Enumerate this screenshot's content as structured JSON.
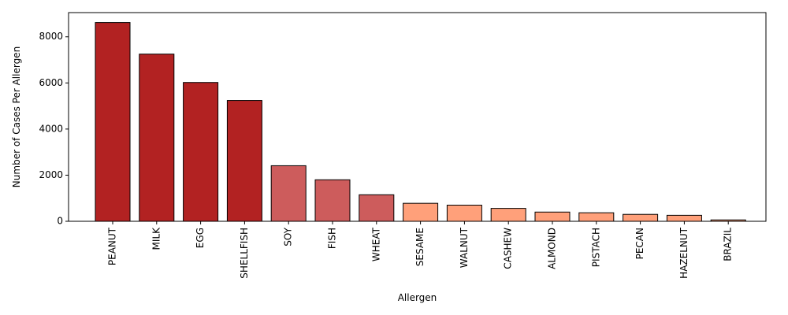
{
  "chart_data": {
    "type": "bar",
    "xlabel": "Allergen",
    "ylabel": "Number of Cases Per Allergen",
    "categories": [
      "PEANUT",
      "MILK",
      "EGG",
      "SHELLFISH",
      "SOY",
      "FISH",
      "WHEAT",
      "SESAME",
      "WALNUT",
      "CASHEW",
      "ALMOND",
      "PISTACH",
      "PECAN",
      "HAZELNUT",
      "BRAZIL"
    ],
    "values": [
      8620,
      7250,
      6020,
      5240,
      2410,
      1800,
      1150,
      780,
      700,
      560,
      400,
      370,
      300,
      260,
      60
    ],
    "bar_colors": [
      "#b22222",
      "#b22222",
      "#b22222",
      "#b22222",
      "#cd5c5c",
      "#cd5c5c",
      "#cd5c5c",
      "#ffa07a",
      "#ffa07a",
      "#ffa07a",
      "#ffa07a",
      "#ffa07a",
      "#ffa07a",
      "#ffa07a",
      "#ffa07a"
    ],
    "bar_edge_color": "#000000",
    "ylim": [
      0,
      9050
    ],
    "yticks": [
      0,
      2000,
      4000,
      6000,
      8000
    ],
    "ytick_labels": [
      "0",
      "2000",
      "4000",
      "6000",
      "8000"
    ],
    "grid": false,
    "legend": "none"
  }
}
